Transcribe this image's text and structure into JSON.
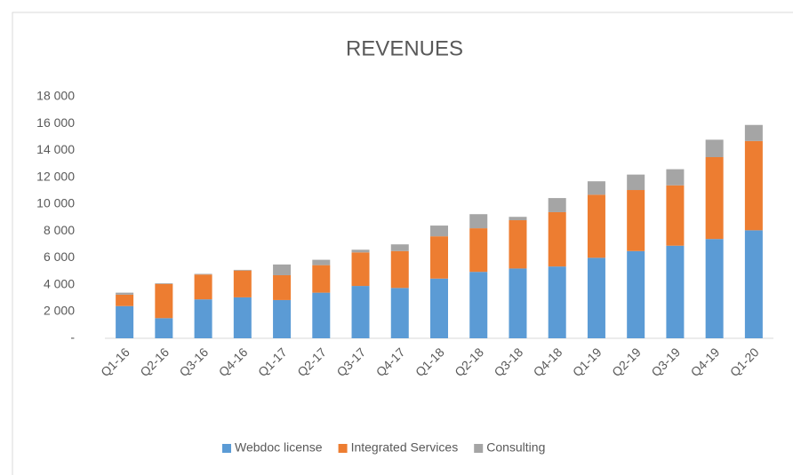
{
  "chart_data": {
    "type": "stacked_bar",
    "title": "REVENUES",
    "categories": [
      "Q1-16",
      "Q2-16",
      "Q3-16",
      "Q4-16",
      "Q1-17",
      "Q2-17",
      "Q3-17",
      "Q4-17",
      "Q1-18",
      "Q2-18",
      "Q3-18",
      "Q4-18",
      "Q1-19",
      "Q2-19",
      "Q3-19",
      "Q4-19",
      "Q1-20"
    ],
    "series": [
      {
        "name": "Webdoc license",
        "color": "#5b9bd5",
        "values": [
          2400,
          1500,
          2900,
          3050,
          2850,
          3400,
          3900,
          3750,
          4450,
          4950,
          5200,
          5350,
          6000,
          6500,
          6900,
          7400,
          8050
        ]
      },
      {
        "name": "Integrated Services",
        "color": "#ed7d31",
        "values": [
          850,
          2550,
          1850,
          2000,
          1850,
          2050,
          2500,
          2750,
          3150,
          3250,
          3600,
          4050,
          4700,
          4550,
          4500,
          6100,
          6650
        ]
      },
      {
        "name": "Consulting",
        "color": "#a5a5a5",
        "values": [
          150,
          50,
          50,
          50,
          800,
          400,
          200,
          500,
          800,
          1050,
          250,
          1050,
          1000,
          1150,
          1200,
          1300,
          1200
        ]
      }
    ],
    "ylim": [
      0,
      18000
    ],
    "yticks": [
      {
        "value": 0,
        "label": "-"
      },
      {
        "value": 2000,
        "label": "2 000"
      },
      {
        "value": 4000,
        "label": "4 000"
      },
      {
        "value": 6000,
        "label": "6 000"
      },
      {
        "value": 8000,
        "label": "8 000"
      },
      {
        "value": 10000,
        "label": "10 000"
      },
      {
        "value": 12000,
        "label": "12 000"
      },
      {
        "value": 14000,
        "label": "14 000"
      },
      {
        "value": 16000,
        "label": "16 000"
      },
      {
        "value": 18000,
        "label": "18 000"
      }
    ],
    "grid": false,
    "legend": "bottom"
  }
}
